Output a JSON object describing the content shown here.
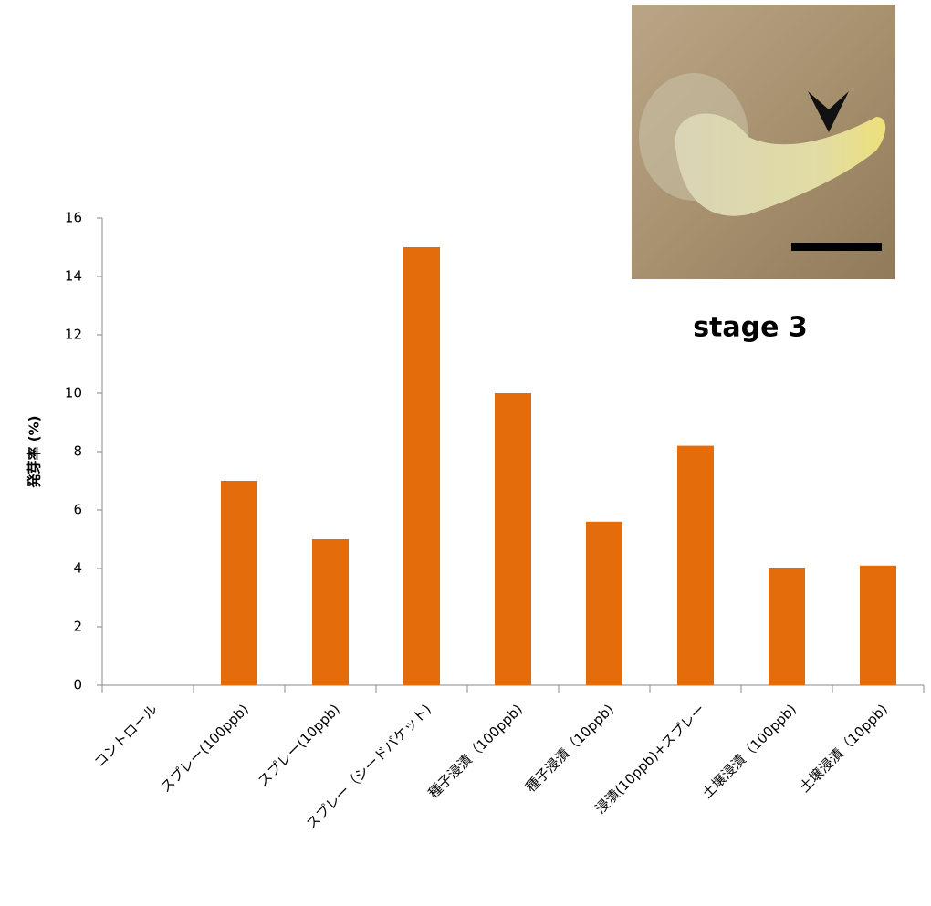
{
  "chart_data": {
    "type": "bar",
    "y_label": "発芽率 (%)",
    "annotation": "stage 3",
    "categories": [
      "コントロール",
      "スプレー(100ppb)",
      "スプレー(10ppb)",
      "スプレー（シードパケット)",
      "種子浸漬（100ppb)",
      "種子浸漬（10ppb)",
      "浸漬(10ppb)+スプレー",
      "土壌浸漬（100ppb)",
      "土壌浸漬（10ppb)"
    ],
    "values": [
      0,
      7,
      5,
      15,
      10,
      5.6,
      8.2,
      4,
      4.1
    ],
    "color": "#e46c0a",
    "ylim": [
      0,
      16
    ],
    "yticks": [
      0,
      2,
      4,
      6,
      8,
      10,
      12,
      14,
      16
    ],
    "grid": false
  }
}
